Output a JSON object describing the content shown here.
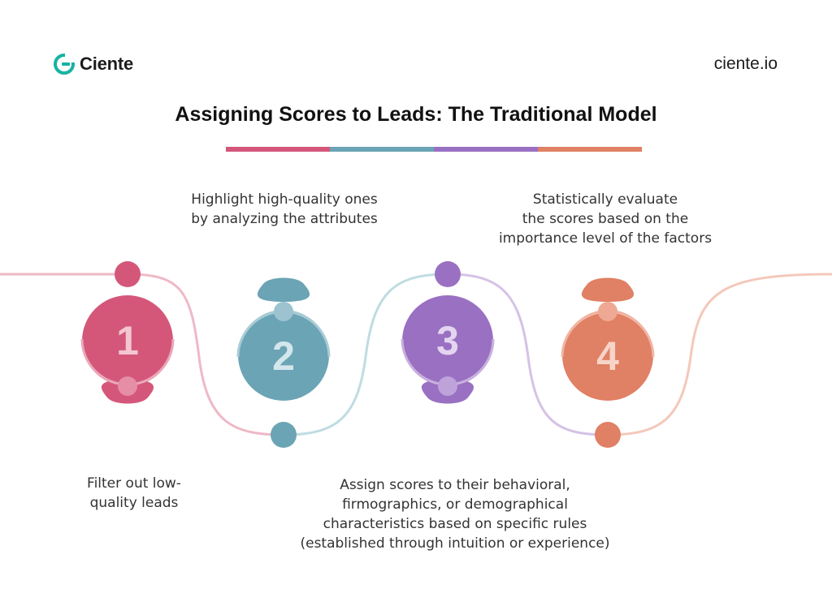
{
  "header": {
    "logo_text": "Ciente",
    "site_url": "ciente.io",
    "title": "Assigning Scores to Leads: The Traditional Model"
  },
  "colors": {
    "pink": "#D4577A",
    "teal": "#6BA4B5",
    "purple": "#9A70C2",
    "orange": "#E08064",
    "logo_teal": "#15B3A2"
  },
  "steps": [
    {
      "number": "1",
      "text": "Filter out low-\nquality leads"
    },
    {
      "number": "2",
      "text": "Highlight high-quality ones\nby analyzing the attributes"
    },
    {
      "number": "3",
      "text": "Assign scores to their behavioral,\nfirmographics, or demographical\ncharacteristics based on specific rules\n(established through intuition or experience)"
    },
    {
      "number": "4",
      "text": "Statistically evaluate\nthe scores based on the\nimportance level of the factors"
    }
  ]
}
